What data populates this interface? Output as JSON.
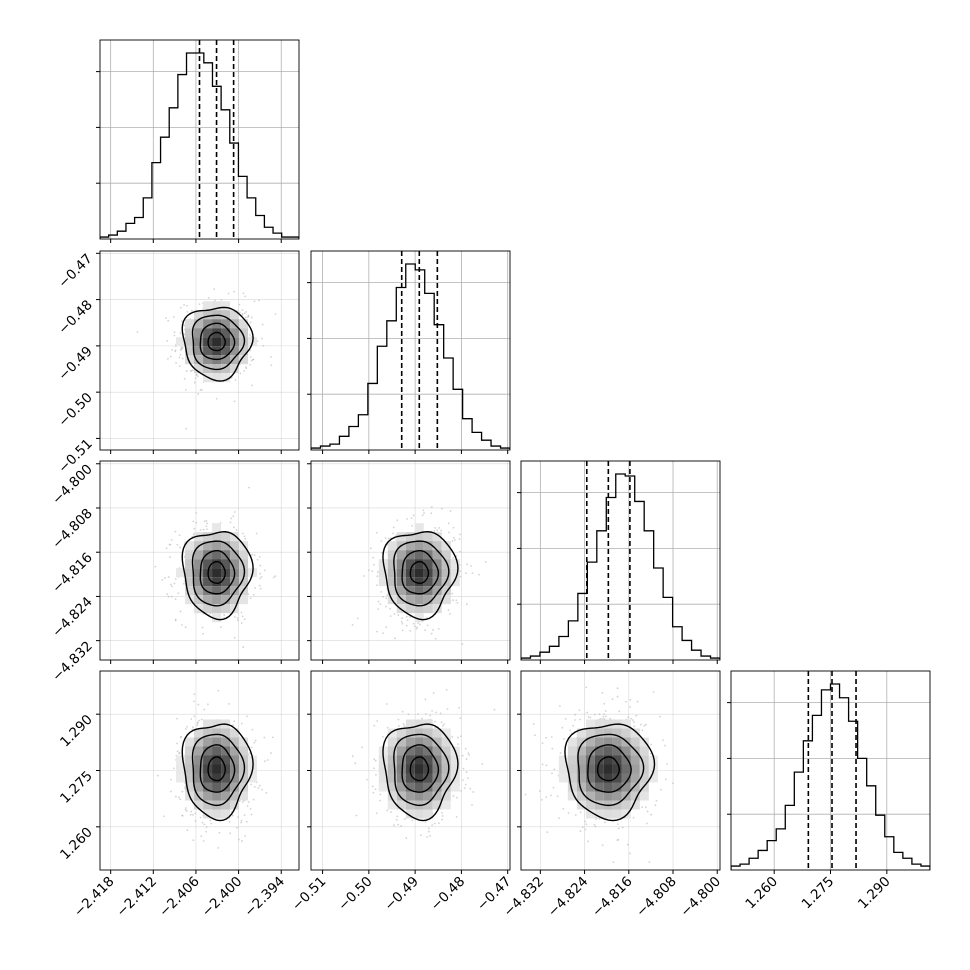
{
  "chart_data": {
    "type": "corner",
    "parameters": [
      {
        "range": [
          -2.4195,
          -2.3915
        ],
        "ticks": [
          "−2.418",
          "−2.412",
          "−2.406",
          "−2.400",
          "−2.394"
        ],
        "tick_values": [
          -2.418,
          -2.412,
          -2.406,
          -2.4,
          -2.394
        ],
        "quantiles": [
          -2.4055,
          -2.4031,
          -2.4007
        ],
        "histogram": [
          1,
          2,
          4,
          8,
          11,
          21,
          39,
          52,
          67,
          84,
          95,
          95,
          90,
          78,
          66,
          49,
          32,
          21,
          12,
          6,
          3,
          1,
          1
        ]
      },
      {
        "range": [
          -0.5125,
          -0.4695
        ],
        "ticks": [
          "−0.51",
          "−0.50",
          "−0.49",
          "−0.48",
          "−0.47"
        ],
        "tick_values": [
          -0.51,
          -0.5,
          -0.49,
          -0.48,
          -0.47
        ],
        "quantiles": [
          -0.4929,
          -0.4891,
          -0.4852
        ],
        "histogram": [
          1,
          2,
          3,
          7,
          12,
          18,
          34,
          53,
          66,
          83,
          95,
          92,
          80,
          64,
          47,
          31,
          16,
          9,
          5,
          2,
          1
        ]
      },
      {
        "range": [
          -4.8355,
          -4.7995
        ],
        "ticks": [
          "−4.832",
          "−4.824",
          "−4.816",
          "−4.808",
          "−4.800"
        ],
        "tick_values": [
          -4.832,
          -4.824,
          -4.816,
          -4.808,
          -4.8
        ],
        "quantiles": [
          -4.8236,
          -4.8197,
          -4.8158
        ],
        "histogram": [
          1,
          2,
          4,
          7,
          12,
          20,
          34,
          50,
          66,
          83,
          95,
          94,
          81,
          66,
          47,
          32,
          17,
          10,
          5,
          2,
          1
        ]
      },
      {
        "range": [
          1.2485,
          1.3015
        ],
        "ticks": [
          "1.260",
          "1.275",
          "1.290"
        ],
        "tick_values": [
          1.26,
          1.275,
          1.29
        ],
        "quantiles": [
          1.2691,
          1.2754,
          1.2818
        ],
        "histogram": [
          2,
          3,
          6,
          10,
          15,
          21,
          33,
          50,
          66,
          79,
          92,
          95,
          88,
          76,
          57,
          43,
          28,
          17,
          9,
          6,
          3,
          2
        ]
      }
    ],
    "pair_stats": {
      "1-0": {
        "mean": [
          -2.4031,
          -0.4891
        ],
        "sd": [
          0.0024,
          0.0039
        ]
      },
      "2-0": {
        "mean": [
          -2.4031,
          -4.8197
        ],
        "sd": [
          0.0024,
          0.0039
        ]
      },
      "2-1": {
        "mean": [
          -0.4891,
          -4.8197
        ],
        "sd": [
          0.0039,
          0.0039
        ]
      },
      "3-0": {
        "mean": [
          -2.4031,
          1.2754
        ],
        "sd": [
          0.0024,
          0.0063
        ]
      },
      "3-1": {
        "mean": [
          -0.4891,
          1.2754
        ],
        "sd": [
          0.0039,
          0.0063
        ]
      },
      "3-2": {
        "mean": [
          -4.8197,
          1.2754
        ],
        "sd": [
          0.0039,
          0.0063
        ]
      }
    },
    "contour_levels_sigma": [
      0.5,
      1.0,
      1.5,
      2.0
    ],
    "scatter_points_per_panel": 550,
    "grid": true,
    "colors": {
      "line": "#000000",
      "points": "#b5b5b5",
      "grid": "#b0b0b0"
    }
  }
}
